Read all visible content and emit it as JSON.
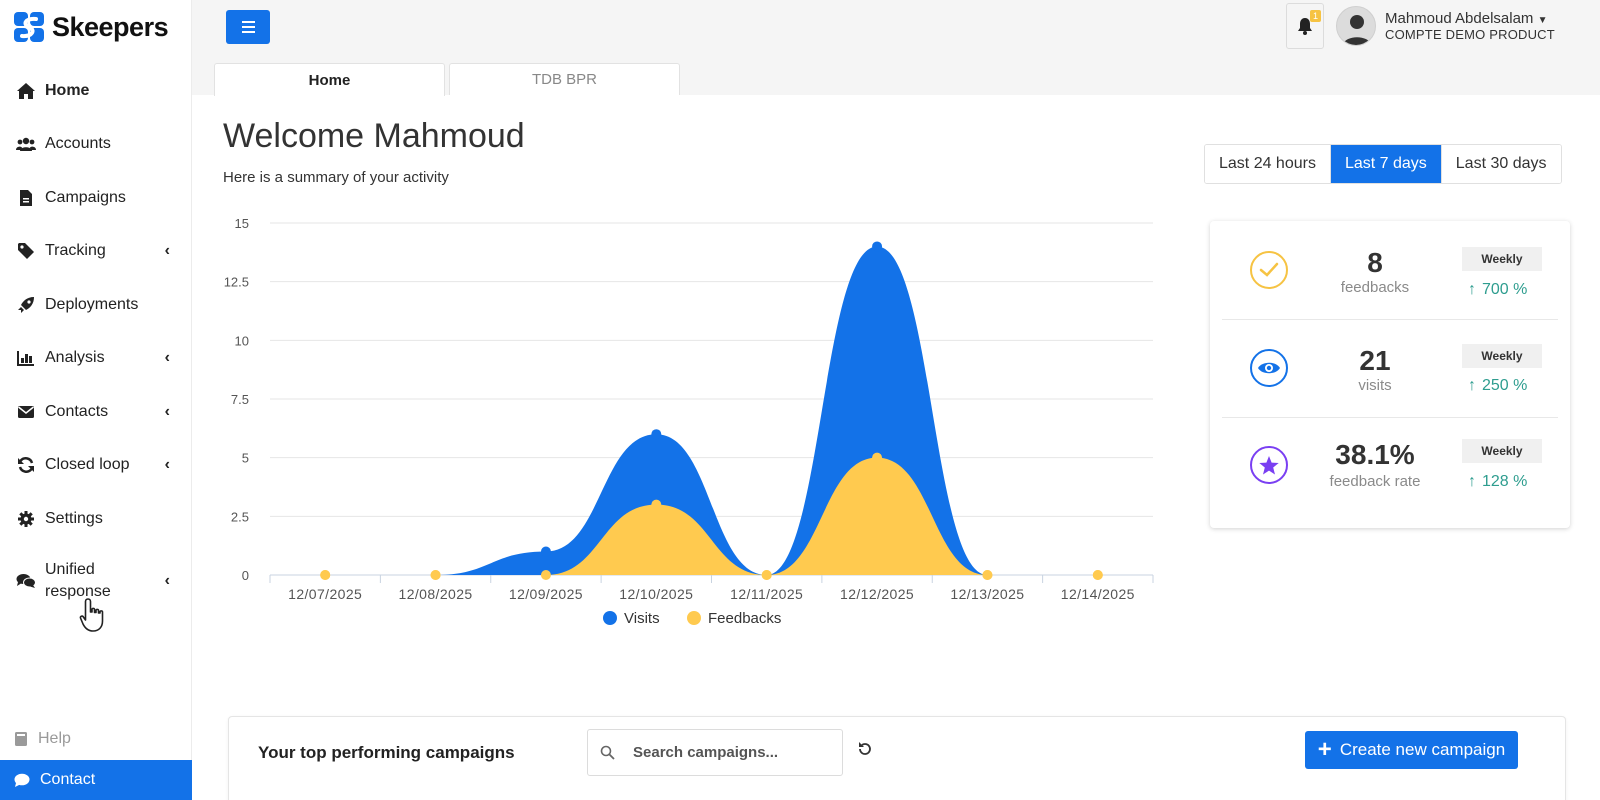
{
  "brand": {
    "name": "Skeepers",
    "color": "#1372e8"
  },
  "sidebar": {
    "items": [
      {
        "label": "Home",
        "icon": "home-icon",
        "active": true,
        "chevron": false
      },
      {
        "label": "Accounts",
        "icon": "users-icon",
        "chevron": false
      },
      {
        "label": "Campaigns",
        "icon": "file-icon",
        "chevron": false
      },
      {
        "label": "Tracking",
        "icon": "tag-icon",
        "chevron": true
      },
      {
        "label": "Deployments",
        "icon": "rocket-icon",
        "chevron": false
      },
      {
        "label": "Analysis",
        "icon": "bar-chart-icon",
        "chevron": true
      },
      {
        "label": "Contacts",
        "icon": "envelope-icon",
        "chevron": true
      },
      {
        "label": "Closed loop",
        "icon": "sync-icon",
        "chevron": true
      },
      {
        "label": "Settings",
        "icon": "gear-icon",
        "chevron": false
      },
      {
        "label": "Unified response",
        "icon": "comments-icon",
        "chevron": true
      }
    ],
    "chevron_glyph": "‹",
    "help_label": "Help",
    "contact_label": "Contact"
  },
  "topbar": {
    "notification_count": "1",
    "user_name": "Mahmoud Abdelsalam",
    "user_account": "COMPTE DEMO PRODUCT",
    "tabs": [
      {
        "label": "Home",
        "active": true
      },
      {
        "label": "TDB BPR",
        "active": false
      }
    ]
  },
  "main": {
    "welcome": "Welcome Mahmoud",
    "summary": "Here is a summary of your activity",
    "ranges": [
      {
        "label": "Last 24 hours",
        "active": false
      },
      {
        "label": "Last 7 days",
        "active": true
      },
      {
        "label": "Last 30 days",
        "active": false
      }
    ]
  },
  "stats": [
    {
      "value": "8",
      "label": "feedbacks",
      "period": "Weekly",
      "trend": "700 %",
      "icon": "check-circle-icon",
      "color": "#f6c343"
    },
    {
      "value": "21",
      "label": "visits",
      "period": "Weekly",
      "trend": "250 %",
      "icon": "eye-icon",
      "color": "#1372e8"
    },
    {
      "value": "38.1%",
      "label": "feedback rate",
      "period": "Weekly",
      "trend": "128 %",
      "icon": "star-icon",
      "color": "#7a3ff2"
    }
  ],
  "chart_data": {
    "type": "area",
    "x": [
      "12/07/2025",
      "12/08/2025",
      "12/09/2025",
      "12/10/2025",
      "12/11/2025",
      "12/12/2025",
      "12/13/2025",
      "12/14/2025"
    ],
    "series": [
      {
        "name": "Visits",
        "values": [
          0,
          0,
          1,
          6,
          0,
          14,
          0,
          0
        ],
        "color": "#1372e8"
      },
      {
        "name": "Feedbacks",
        "values": [
          0,
          0,
          0,
          3,
          0,
          5,
          0,
          0
        ],
        "color": "#ffca4f"
      }
    ],
    "yticks": [
      "0",
      "2.5",
      "5",
      "7.5",
      "10",
      "12.5",
      "15"
    ],
    "ylim": [
      0,
      15
    ],
    "grid": true,
    "legend": "bottom"
  },
  "campaigns": {
    "title": "Your top performing campaigns",
    "search_placeholder": "Search campaigns...",
    "create_label": "Create new campaign"
  }
}
